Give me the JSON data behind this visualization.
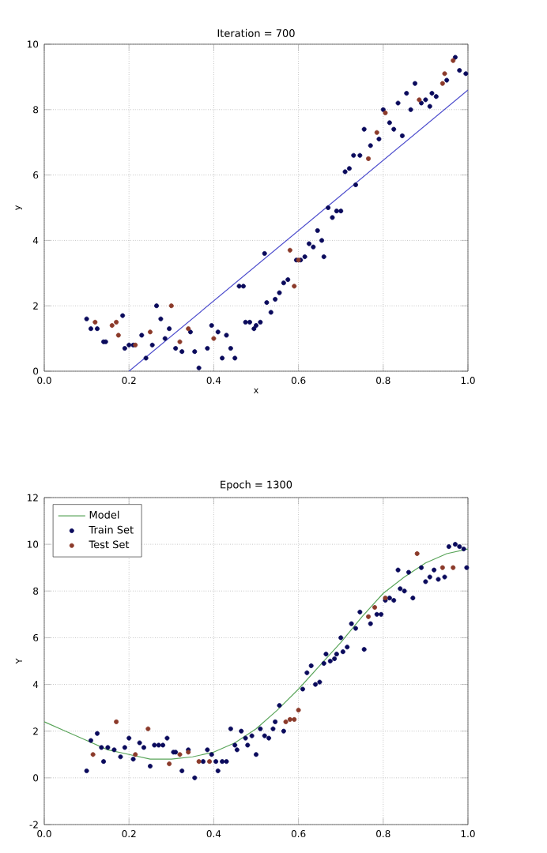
{
  "chart_data": [
    {
      "type": "scatter",
      "title": "Iteration = 700",
      "xlabel": "x",
      "ylabel": "y",
      "xlim": [
        0,
        1
      ],
      "ylim": [
        0,
        10
      ],
      "xticks": [
        {
          "value": 0,
          "label": "0.0"
        },
        {
          "value": 0.2,
          "label": "0.2"
        },
        {
          "value": 0.4,
          "label": "0.4"
        },
        {
          "value": 0.6,
          "label": "0.6"
        },
        {
          "value": 0.8,
          "label": "0.8"
        },
        {
          "value": 1,
          "label": "1.0"
        }
      ],
      "yticks": [
        0,
        2,
        4,
        6,
        8,
        10
      ],
      "grid": true,
      "series": [
        {
          "marker": "circle",
          "color": "#0a0a5c",
          "x": [
            0.1,
            0.11,
            0.125,
            0.14,
            0.145,
            0.185,
            0.19,
            0.2,
            0.21,
            0.23,
            0.24,
            0.255,
            0.265,
            0.275,
            0.285,
            0.295,
            0.31,
            0.325,
            0.345,
            0.355,
            0.365,
            0.385,
            0.395,
            0.41,
            0.42,
            0.43,
            0.44,
            0.45,
            0.46,
            0.47,
            0.475,
            0.485,
            0.495,
            0.5,
            0.51,
            0.52,
            0.525,
            0.535,
            0.545,
            0.555,
            0.565,
            0.575,
            0.595,
            0.605,
            0.615,
            0.625,
            0.635,
            0.645,
            0.655,
            0.66,
            0.67,
            0.68,
            0.69,
            0.7,
            0.71,
            0.72,
            0.73,
            0.735,
            0.745,
            0.755,
            0.77,
            0.79,
            0.8,
            0.815,
            0.825,
            0.835,
            0.845,
            0.855,
            0.865,
            0.875,
            0.89,
            0.9,
            0.91,
            0.915,
            0.925,
            0.95,
            0.97,
            0.98,
            0.995
          ],
          "values": [
            1.6,
            1.3,
            1.3,
            0.9,
            0.9,
            1.7,
            0.7,
            0.8,
            0.8,
            1.1,
            0.4,
            0.8,
            2.0,
            1.6,
            1.0,
            1.3,
            0.7,
            0.6,
            1.2,
            0.6,
            0.1,
            0.7,
            1.4,
            1.2,
            0.4,
            1.1,
            0.7,
            0.4,
            2.6,
            2.6,
            1.5,
            1.5,
            1.3,
            1.4,
            1.5,
            3.6,
            2.1,
            1.8,
            2.2,
            2.4,
            2.7,
            2.8,
            3.4,
            3.4,
            3.5,
            3.9,
            3.8,
            4.3,
            4.0,
            3.5,
            5.0,
            4.7,
            4.9,
            4.9,
            6.1,
            6.2,
            6.6,
            5.7,
            6.6,
            7.4,
            6.9,
            7.1,
            8.0,
            7.6,
            7.4,
            8.2,
            7.2,
            8.5,
            8.0,
            8.8,
            8.2,
            8.3,
            8.1,
            8.5,
            8.4,
            8.9,
            9.6,
            9.2,
            9.1
          ]
        },
        {
          "marker": "circle",
          "color": "#8b3a2a",
          "x": [
            0.12,
            0.16,
            0.17,
            0.175,
            0.215,
            0.25,
            0.3,
            0.32,
            0.34,
            0.4,
            0.58,
            0.59,
            0.6,
            0.765,
            0.785,
            0.805,
            0.885,
            0.94,
            0.945,
            0.965
          ],
          "values": [
            1.5,
            1.4,
            1.5,
            1.1,
            0.8,
            1.2,
            2.0,
            0.9,
            1.3,
            1.0,
            3.7,
            2.6,
            3.4,
            6.5,
            7.3,
            7.9,
            8.3,
            8.8,
            9.1,
            9.5
          ]
        },
        {
          "type": "line",
          "color": "#4a4acc",
          "x": [
            0.2,
            1.0
          ],
          "values": [
            0,
            8.6
          ]
        }
      ]
    },
    {
      "type": "scatter",
      "title": "Epoch = 1300",
      "ylabel": "Y",
      "xlim": [
        0,
        1
      ],
      "ylim": [
        -2,
        12
      ],
      "xticks": [
        {
          "value": 0,
          "label": "0.0"
        },
        {
          "value": 0.2,
          "label": "0.2"
        },
        {
          "value": 0.4,
          "label": "0.4"
        },
        {
          "value": 0.6,
          "label": "0.6"
        },
        {
          "value": 0.8,
          "label": "0.8"
        },
        {
          "value": 1,
          "label": "1.0"
        }
      ],
      "yticks": [
        -2,
        0,
        2,
        4,
        6,
        8,
        10,
        12
      ],
      "grid": true,
      "legend": "top left",
      "series": [
        {
          "type": "line",
          "name": "Model",
          "color": "#5aa55a",
          "x": [
            0,
            0.05,
            0.1,
            0.15,
            0.2,
            0.25,
            0.3,
            0.35,
            0.4,
            0.45,
            0.5,
            0.55,
            0.6,
            0.65,
            0.7,
            0.75,
            0.8,
            0.85,
            0.9,
            0.95,
            1.0
          ],
          "values": [
            2.4,
            2.0,
            1.6,
            1.2,
            1.0,
            0.8,
            0.8,
            0.9,
            1.1,
            1.5,
            2.1,
            2.9,
            3.8,
            4.8,
            5.8,
            6.9,
            7.9,
            8.6,
            9.2,
            9.6,
            9.8
          ]
        },
        {
          "name": "Train Set",
          "marker": "circle",
          "color": "#0a0a5c",
          "x": [
            0.1,
            0.11,
            0.125,
            0.135,
            0.14,
            0.15,
            0.165,
            0.18,
            0.19,
            0.2,
            0.21,
            0.225,
            0.235,
            0.25,
            0.26,
            0.27,
            0.28,
            0.29,
            0.305,
            0.31,
            0.325,
            0.34,
            0.355,
            0.375,
            0.385,
            0.395,
            0.405,
            0.41,
            0.42,
            0.43,
            0.44,
            0.45,
            0.455,
            0.465,
            0.475,
            0.48,
            0.49,
            0.5,
            0.51,
            0.52,
            0.53,
            0.54,
            0.545,
            0.555,
            0.565,
            0.61,
            0.62,
            0.63,
            0.64,
            0.65,
            0.66,
            0.665,
            0.675,
            0.685,
            0.69,
            0.7,
            0.705,
            0.715,
            0.725,
            0.735,
            0.745,
            0.755,
            0.77,
            0.785,
            0.795,
            0.805,
            0.815,
            0.825,
            0.835,
            0.84,
            0.85,
            0.86,
            0.87,
            0.89,
            0.9,
            0.91,
            0.92,
            0.93,
            0.945,
            0.955,
            0.97,
            0.98,
            0.99,
            0.997
          ],
          "values": [
            0.3,
            1.6,
            1.9,
            1.3,
            0.7,
            1.3,
            1.2,
            0.9,
            1.3,
            1.7,
            0.8,
            1.5,
            1.3,
            0.5,
            1.4,
            1.4,
            1.4,
            1.7,
            1.1,
            1.1,
            0.3,
            1.2,
            0.0,
            0.7,
            1.2,
            1.0,
            0.7,
            0.3,
            0.7,
            0.7,
            2.1,
            1.4,
            1.2,
            2.0,
            1.7,
            1.4,
            1.8,
            1.0,
            2.1,
            1.8,
            1.7,
            2.1,
            2.4,
            3.1,
            2.0,
            3.8,
            4.5,
            4.8,
            4.0,
            4.1,
            4.9,
            5.3,
            5.0,
            5.1,
            5.3,
            6.0,
            5.4,
            5.6,
            6.6,
            6.4,
            7.1,
            5.5,
            6.6,
            7.0,
            7.0,
            7.6,
            7.7,
            7.6,
            8.9,
            8.1,
            8.0,
            8.8,
            7.7,
            9.0,
            8.4,
            8.6,
            8.9,
            8.5,
            8.6,
            9.9,
            10.0,
            9.9,
            9.8,
            9.0
          ]
        },
        {
          "name": "Test Set",
          "marker": "circle",
          "color": "#8b3a2a",
          "x": [
            0.115,
            0.17,
            0.215,
            0.245,
            0.295,
            0.32,
            0.34,
            0.365,
            0.39,
            0.57,
            0.58,
            0.59,
            0.6,
            0.765,
            0.78,
            0.805,
            0.88,
            0.94,
            0.965
          ],
          "values": [
            1.0,
            2.4,
            1.0,
            2.1,
            0.6,
            1.0,
            1.1,
            0.7,
            0.7,
            2.4,
            2.5,
            2.5,
            2.9,
            6.9,
            7.3,
            7.7,
            9.6,
            9.0,
            9.0
          ]
        }
      ]
    }
  ]
}
